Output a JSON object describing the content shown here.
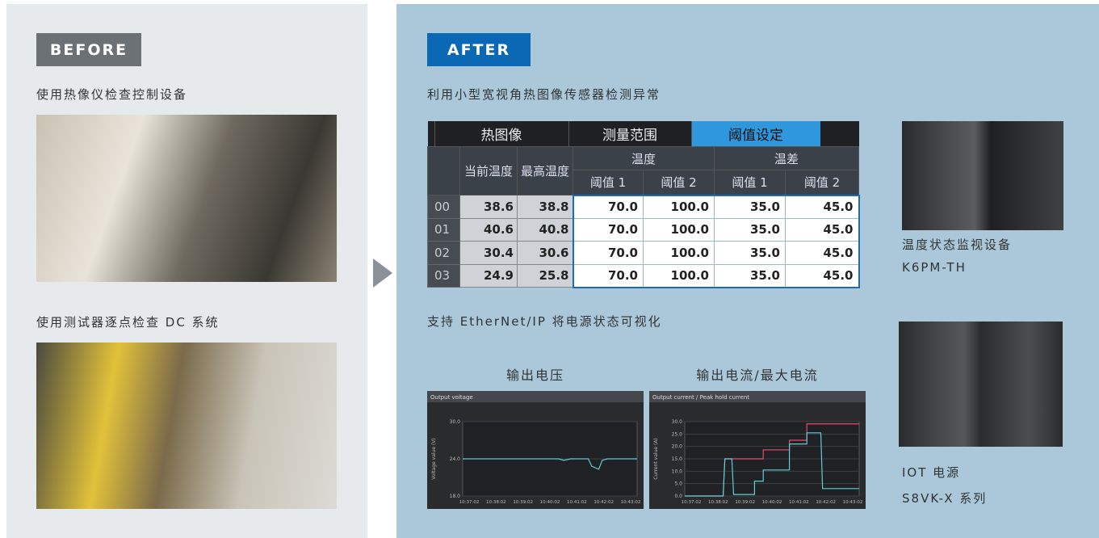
{
  "before": {
    "badge": "BEFORE",
    "item1": "使用热像仪检查控制设备",
    "item2": "使用测试器逐点检查 DC 系统"
  },
  "after": {
    "badge": "AFTER",
    "heading1": "利用小型宽视角热图像传感器检测异常",
    "heading2": "支持 EtherNet/IP 将电源状态可视化",
    "table": {
      "tabs": [
        "热图像",
        "测量范围",
        "阈值设定"
      ],
      "headers": {
        "current": "当前温度",
        "max": "最高温度",
        "temp": "温度",
        "diff": "温差",
        "th1": "阈值 1",
        "th2": "阈值 2"
      },
      "rows": [
        [
          "00",
          "38.6",
          "38.8",
          "70.0",
          "100.0",
          "35.0",
          "45.0"
        ],
        [
          "01",
          "40.6",
          "40.8",
          "70.0",
          "100.0",
          "35.0",
          "45.0"
        ],
        [
          "02",
          "30.4",
          "30.6",
          "70.0",
          "100.0",
          "35.0",
          "45.0"
        ],
        [
          "03",
          "24.9",
          "25.8",
          "70.0",
          "100.0",
          "35.0",
          "45.0"
        ]
      ]
    },
    "device1": {
      "name": "温度状态监视设备",
      "model": "K6PM-TH"
    },
    "device2": {
      "name": "IOT 电源",
      "model": "S8VK-X 系列"
    },
    "charts": [
      {
        "caption": "输出电压",
        "title": "Output voltage",
        "ylabel": "Voltage value (V)",
        "ylim": [
          18,
          30
        ],
        "yticks": [
          {
            "value": 18,
            "label": "18.0"
          },
          {
            "value": 24,
            "label": "24.0"
          },
          {
            "value": 30,
            "label": "30.0"
          }
        ],
        "xticks": [
          "10:37:02",
          "10:38:02",
          "10:39:02",
          "10:40:02",
          "10:41:02",
          "10:42:02",
          "10:43:02"
        ]
      },
      {
        "caption": "输出电流/最大电流",
        "title": "Output current / Peak hold current",
        "ylabel": "Current value (A)",
        "ylim": [
          0,
          30
        ],
        "yticks": [
          {
            "value": 0,
            "label": "0.0"
          },
          {
            "value": 5,
            "label": "5.0"
          },
          {
            "value": 10,
            "label": "10.0"
          },
          {
            "value": 15,
            "label": "15.0"
          },
          {
            "value": 20,
            "label": "20.0"
          },
          {
            "value": 25,
            "label": "25.0"
          },
          {
            "value": 30,
            "label": "30.0"
          }
        ],
        "xticks": [
          "10:37:02",
          "10:38:02",
          "10:39:02",
          "10:40:02",
          "10:41:02",
          "10:42:02",
          "10:43:02"
        ]
      }
    ]
  }
}
